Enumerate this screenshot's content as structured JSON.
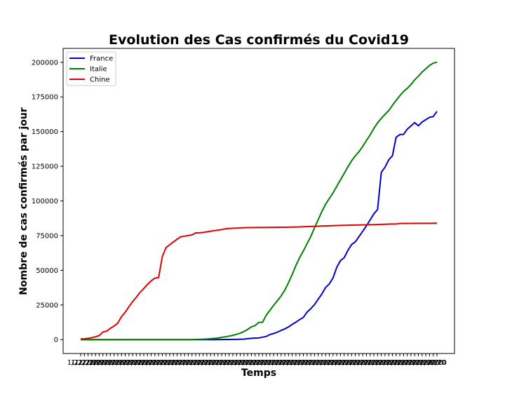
{
  "chart_data": {
    "type": "line",
    "title": "Evolution des Cas confirmés du Covid19",
    "xlabel": "Temps",
    "ylabel": "Nombre de cas confirmés par jour",
    "x_tick_labels_visible": "1/22/20",
    "x_tick_labels_end": "2020",
    "ylim": [
      -10000,
      210000
    ],
    "yticks": [
      0,
      25000,
      50000,
      75000,
      100000,
      125000,
      150000,
      175000,
      200000
    ],
    "ytick_labels": [
      "0",
      "25000",
      "50000",
      "75000",
      "100000",
      "125000",
      "150000",
      "175000",
      "200000"
    ],
    "x_count": 97,
    "legend_position": "top-left",
    "series": [
      {
        "name": "France",
        "color": "#0000cc",
        "values": [
          0,
          0,
          0,
          3,
          3,
          4,
          5,
          5,
          6,
          6,
          6,
          6,
          6,
          6,
          6,
          11,
          11,
          11,
          11,
          11,
          11,
          12,
          12,
          12,
          12,
          12,
          12,
          12,
          12,
          12,
          12,
          12,
          12,
          12,
          12,
          14,
          18,
          38,
          57,
          100,
          130,
          191,
          204,
          288,
          380,
          656,
          959,
          1136,
          1217,
          1792,
          2289,
          3672,
          4410,
          5423,
          6633,
          7730,
          9134,
          10995,
          12612,
          14459,
          16018,
          19856,
          22304,
          25233,
          29155,
          32964,
          37575,
          40174,
          44550,
          52128,
          56989,
          59105,
          64338,
          68605,
          70478,
          74390,
          78167,
          82048,
          86334,
          90676,
          93790,
          120633,
          124298,
          129654,
          132591,
          145959,
          147863,
          147969,
          151793,
          154097,
          156480,
          154188,
          156921,
          158636,
          160292,
          160847,
          164589
        ]
      },
      {
        "name": "Italie",
        "color": "#008000",
        "values": [
          0,
          0,
          0,
          0,
          0,
          0,
          0,
          0,
          0,
          2,
          2,
          2,
          2,
          2,
          3,
          3,
          3,
          3,
          3,
          3,
          3,
          3,
          3,
          3,
          3,
          3,
          3,
          3,
          3,
          20,
          62,
          155,
          229,
          322,
          453,
          655,
          888,
          1128,
          1694,
          2036,
          2502,
          3089,
          3858,
          4636,
          5883,
          7375,
          9172,
          10149,
          12462,
          12462,
          17660,
          21157,
          24747,
          27980,
          31506,
          35713,
          41035,
          47021,
          53578,
          59138,
          63927,
          69176,
          74386,
          80589,
          86498,
          92472,
          97689,
          101739,
          105792,
          110574,
          115242,
          119827,
          124632,
          128948,
          132547,
          135586,
          139422,
          143626,
          147577,
          152271,
          156363,
          159516,
          162488,
          165155,
          168941,
          172434,
          175925,
          178972,
          181228,
          183957,
          187327,
          189973,
          192994,
          195351,
          197675,
          199414,
          200000
        ]
      },
      {
        "name": "Chine",
        "color": "#e00000",
        "values": [
          548,
          643,
          920,
          1406,
          2075,
          2877,
          5509,
          6087,
          8141,
          9802,
          11891,
          16630,
          19716,
          23707,
          27440,
          30587,
          34110,
          36814,
          39829,
          42354,
          44386,
          44759,
          59895,
          66358,
          68413,
          70513,
          72434,
          74211,
          74619,
          75077,
          75550,
          77001,
          77022,
          77241,
          77754,
          78166,
          78600,
          78928,
          79356,
          79932,
          80136,
          80261,
          80386,
          80537,
          80690,
          80770,
          80823,
          80860,
          80887,
          80921,
          80932,
          80945,
          80977,
          81003,
          81033,
          81058,
          81102,
          81156,
          81250,
          81305,
          81435,
          81498,
          81591,
          81661,
          81782,
          81897,
          81999,
          82122,
          82198,
          82279,
          82361,
          82432,
          82511,
          82543,
          82602,
          82665,
          82718,
          82809,
          82883,
          82941,
          83014,
          83134,
          83213,
          83306,
          83356,
          83403,
          83760,
          83787,
          83805,
          83817,
          83853,
          83868,
          83884,
          83899,
          83909,
          83912,
          83918
        ]
      }
    ]
  }
}
